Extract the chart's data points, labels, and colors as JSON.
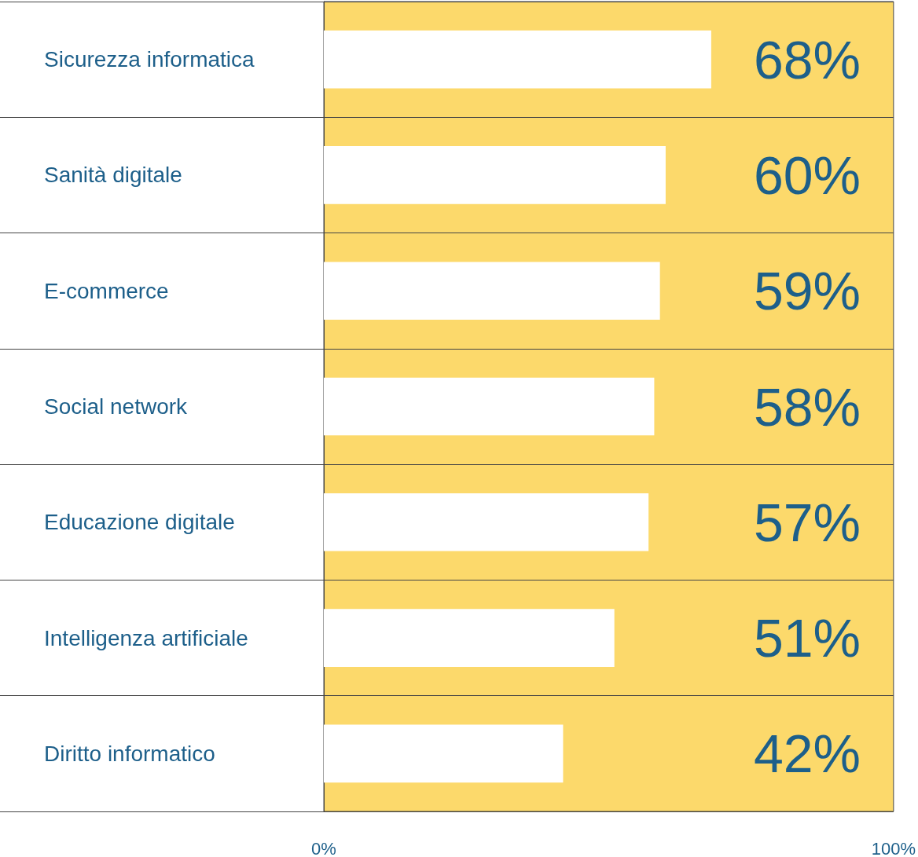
{
  "chart_data": {
    "type": "bar",
    "orientation": "horizontal",
    "categories": [
      "Sicurezza informatica",
      "Sanità digitale",
      "E-commerce",
      "Social network",
      "Educazione digitale",
      "Intelligenza artificiale",
      "Diritto informatico"
    ],
    "values": [
      68,
      60,
      59,
      58,
      57,
      51,
      42
    ],
    "value_labels": [
      "68%",
      "60%",
      "59%",
      "58%",
      "57%",
      "51%",
      "42%"
    ],
    "color": "#ffffff",
    "xlim": [
      0,
      100
    ],
    "xticks": [
      {
        "value": 0,
        "label": "0%"
      },
      {
        "value": 100,
        "label": "100%"
      }
    ],
    "grid": "y"
  }
}
